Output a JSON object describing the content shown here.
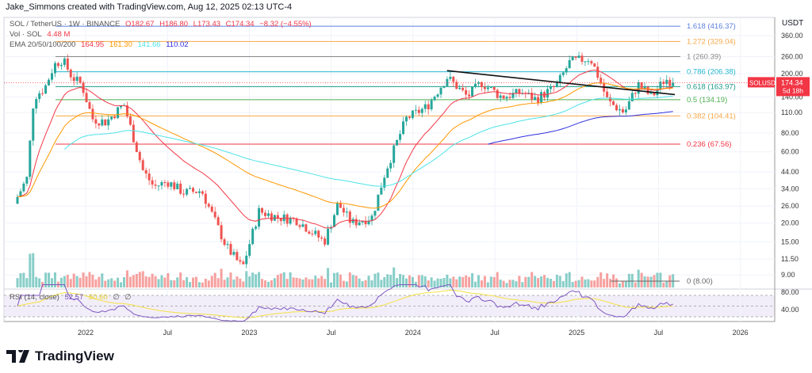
{
  "credit": "Jake_Simmons created with TradingView.com, Aug 12, 2025 02:13 UTC-4",
  "legend": {
    "symbol": "SOL / TetherUS · 1W · BINANCE",
    "o": "O182.67",
    "h": "H186.80",
    "l": "L173.43",
    "c": "C174.34",
    "chg": "−8.32 (−4.55%)",
    "vol_label": "Vol · SOL",
    "vol_value": "4.48 M",
    "ema_label": "EMA 20/50/100/200",
    "ema20": "164.95",
    "ema50": "161.30",
    "ema100": "141.66",
    "ema200": "110.02",
    "rsi_label": "RSI (14, close)",
    "rsi_value": "52.57",
    "rsi_ma": "50.60",
    "rsi_na1": "∅",
    "rsi_na2": "∅"
  },
  "currency": "USDT",
  "price_tag": {
    "symbol": "SOLUSDT",
    "price": "174.34",
    "countdown": "5d 18h",
    "color": "#f23645"
  },
  "logo": "TradingView",
  "colors": {
    "up": "#26a69a",
    "down": "#ef5350",
    "ema20": "#f23645",
    "ema50": "#ff9800",
    "ema100": "#4de3e8",
    "ema200": "#3030e0",
    "rsi": "#7e57c2",
    "rsi_ma": "#f5e042"
  },
  "fib_levels": [
    {
      "label": "1.618 (416.37)",
      "price": 416.37,
      "color": "#5b7fe0"
    },
    {
      "label": "1.272 (329.04)",
      "price": 329.04,
      "color": "#f7a84a"
    },
    {
      "label": "1 (260.39)",
      "price": 260.39,
      "color": "#888888"
    },
    {
      "label": "0.786 (206.38)",
      "price": 206.38,
      "color": "#22b7d1"
    },
    {
      "label": "0.618 (163.97)",
      "price": 163.97,
      "color": "#1a9c8a"
    },
    {
      "label": "0.5 (134.19)",
      "price": 134.19,
      "color": "#4caf50"
    },
    {
      "label": "0.382 (104.41)",
      "price": 104.41,
      "color": "#f7a84a"
    },
    {
      "label": "0.236 (67.56)",
      "price": 67.56,
      "color": "#f23645"
    },
    {
      "label": "0 (8.00)",
      "price": 8.0,
      "color": "#666666"
    }
  ],
  "chart_data": {
    "type": "candlestick",
    "title": "SOL / TetherUS · 1W · BINANCE",
    "y_scale": "log",
    "y_ticks": [
      "360.00",
      "260.00",
      "200.00",
      "140.00",
      "110.00",
      "80.00",
      "60.00",
      "44.00",
      "34.00",
      "26.00",
      "20.00",
      "15.00",
      "11.50",
      "9.00"
    ],
    "rsi_ticks": [
      "80.00",
      "40.00"
    ],
    "x_ticks": [
      {
        "label": "2022",
        "month": 0
      },
      {
        "label": "Jul",
        "month": 6
      },
      {
        "label": "2023",
        "month": 12
      },
      {
        "label": "Jul",
        "month": 18
      },
      {
        "label": "2024",
        "month": 24
      },
      {
        "label": "Jul",
        "month": 30
      },
      {
        "label": "2025",
        "month": 36
      },
      {
        "label": "Jul",
        "month": 42
      },
      {
        "label": "2026",
        "month": 48
      }
    ],
    "price_path_months_since_jan2022": [
      [
        -5,
        30
      ],
      [
        -4.3,
        40
      ],
      [
        -3.8,
        140
      ],
      [
        -3,
        160
      ],
      [
        -2.3,
        230
      ],
      [
        -1.7,
        250
      ],
      [
        -1,
        190
      ],
      [
        -0.3,
        170
      ],
      [
        0.5,
        100
      ],
      [
        1.5,
        95
      ],
      [
        2.8,
        125
      ],
      [
        4.2,
        45
      ],
      [
        5,
        35
      ],
      [
        6,
        38
      ],
      [
        7.2,
        32
      ],
      [
        8.5,
        33
      ],
      [
        10.3,
        14
      ],
      [
        11.5,
        10
      ],
      [
        12.7,
        24
      ],
      [
        14,
        22
      ],
      [
        15.5,
        21
      ],
      [
        17.5,
        15
      ],
      [
        18.5,
        27
      ],
      [
        19.5,
        20
      ],
      [
        21,
        22
      ],
      [
        22,
        45
      ],
      [
        23.5,
        100
      ],
      [
        25,
        120
      ],
      [
        26.5,
        190
      ],
      [
        28,
        140
      ],
      [
        29,
        175
      ],
      [
        30.5,
        140
      ],
      [
        32,
        150
      ],
      [
        33,
        135
      ],
      [
        34.5,
        165
      ],
      [
        35.5,
        240
      ],
      [
        37,
        255
      ],
      [
        37.5,
        200
      ],
      [
        38.3,
        130
      ],
      [
        39.5,
        110
      ],
      [
        40.5,
        170
      ],
      [
        41.5,
        140
      ],
      [
        42.5,
        185
      ],
      [
        43.2,
        174.34
      ]
    ],
    "trendline": [
      [
        26.5,
        210
      ],
      [
        43.2,
        145
      ]
    ],
    "last_close": 174.34
  }
}
